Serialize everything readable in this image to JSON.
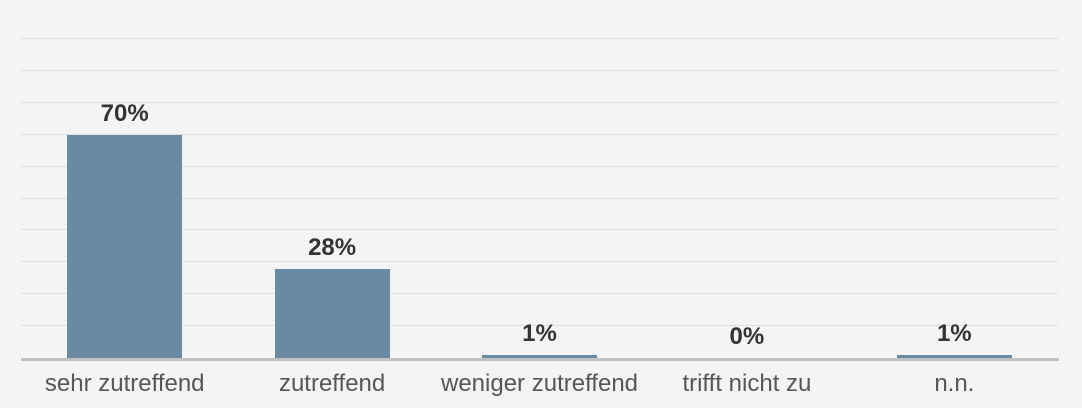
{
  "chart_data": {
    "type": "bar",
    "categories": [
      "sehr zutreffend",
      "zutreffend",
      "weniger zutreffend",
      "trifft nicht zu",
      "n.n."
    ],
    "values": [
      70,
      28,
      1,
      0,
      1
    ],
    "value_labels": [
      "70%",
      "28%",
      "1%",
      "0%",
      "1%"
    ],
    "xlabel": "",
    "ylabel": "",
    "ylim": [
      0,
      100
    ],
    "gridline_step_percent": 10,
    "grid": true,
    "legend": "none",
    "colors": {
      "background": "#f4f4f4",
      "bar": "#688aa2",
      "gridline": "#dedede",
      "axis_line": "#c1c1c1",
      "value_text": "#333333",
      "category_text": "#565656"
    }
  }
}
